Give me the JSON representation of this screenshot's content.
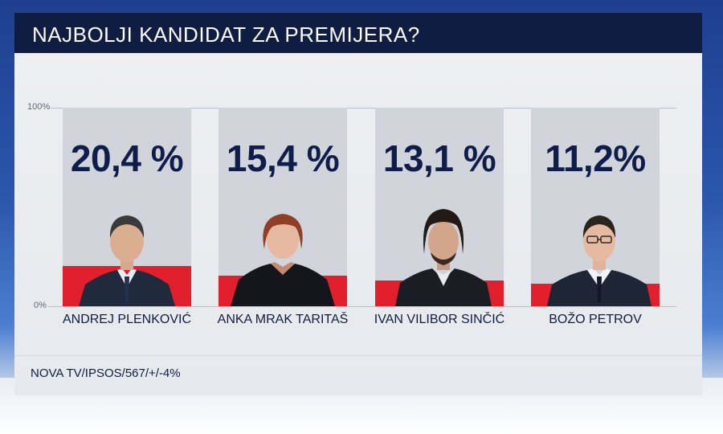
{
  "title": "NAJBOLJI KANDIDAT ZA PREMIJERA?",
  "source": "NOVA TV/IPSOS/567/+/-4%",
  "chart_data": {
    "type": "bar",
    "title": "NAJBOLJI KANDIDAT ZA PREMIJERA?",
    "categories": [
      "ANDREJ PLENKOVIĆ",
      "ANKA MRAK TARITAŠ",
      "IVAN VILIBOR SINČIĆ",
      "BOŽO PETROV"
    ],
    "values": [
      20.4,
      15.4,
      13.1,
      11.2
    ],
    "value_labels": [
      "20,4 %",
      "15,4 %",
      "13,1 %",
      "11,2%"
    ],
    "ylim": [
      0,
      100
    ],
    "ytick_labels": [
      "100%",
      "0%"
    ],
    "grid": true,
    "colors": {
      "bar": "#e11f2d",
      "background_column": "#d1d5db",
      "text": "#0f1d43"
    }
  }
}
